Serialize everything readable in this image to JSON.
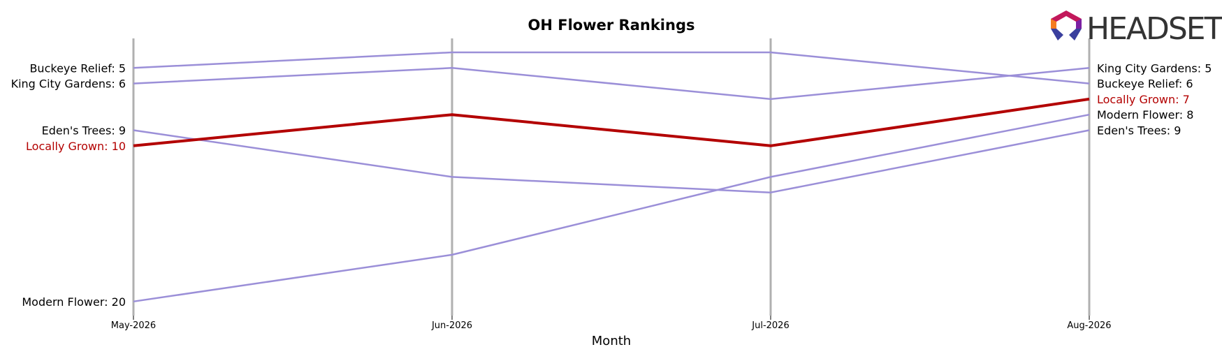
{
  "chart_data": {
    "type": "line",
    "title": "OH Flower Rankings",
    "xlabel": "Month",
    "ylabel": "",
    "categories": [
      "May-2026",
      "Jun-2026",
      "Jul-2026",
      "Aug-2026"
    ],
    "y_inverted": true,
    "ylim": [
      21,
      4
    ],
    "grid": "vertical lines at each month",
    "series": [
      {
        "name": "Buckeye Relief",
        "values": [
          5,
          4,
          4,
          6
        ],
        "highlight": false
      },
      {
        "name": "King City Gardens",
        "values": [
          6,
          5,
          7,
          5
        ],
        "highlight": false
      },
      {
        "name": "Eden's Trees",
        "values": [
          9,
          12,
          13,
          9
        ],
        "highlight": false
      },
      {
        "name": "Locally Grown",
        "values": [
          10,
          8,
          10,
          7
        ],
        "highlight": true
      },
      {
        "name": "Modern Flower",
        "values": [
          20,
          17,
          12,
          8
        ],
        "highlight": false
      }
    ],
    "colors": {
      "default": "#9b8fd8",
      "highlight": "#b30000",
      "axis": "#b0b0b0",
      "label": "#000000"
    }
  },
  "logo": {
    "text": "HEADSET"
  }
}
